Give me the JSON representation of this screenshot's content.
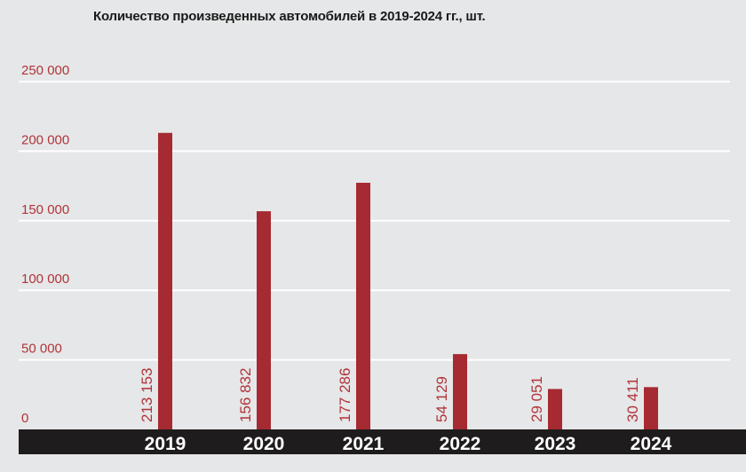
{
  "chart_data": {
    "type": "bar",
    "title": "Количество произведенных автомобилей в 2019-2024 гг., шт.",
    "categories": [
      "2019",
      "2020",
      "2021",
      "2022",
      "2023",
      "2024"
    ],
    "values": [
      213153,
      156832,
      177286,
      54129,
      29051,
      30411
    ],
    "value_labels": [
      "213 153",
      "156 832",
      "177 286",
      "54 129",
      "29 051",
      "30 411"
    ],
    "yticks": [
      0,
      50000,
      100000,
      150000,
      200000,
      250000
    ],
    "ytick_labels": [
      "0",
      "50 000",
      "100 000",
      "150 000",
      "200 000",
      "250 000"
    ],
    "ylim": [
      0,
      250000
    ],
    "grid": true,
    "colors": {
      "bar": "#a62a32",
      "label": "#b0343a",
      "axis_band": "#1e1c1c",
      "background": "#e6e7e8",
      "grid": "#ffffff"
    }
  }
}
